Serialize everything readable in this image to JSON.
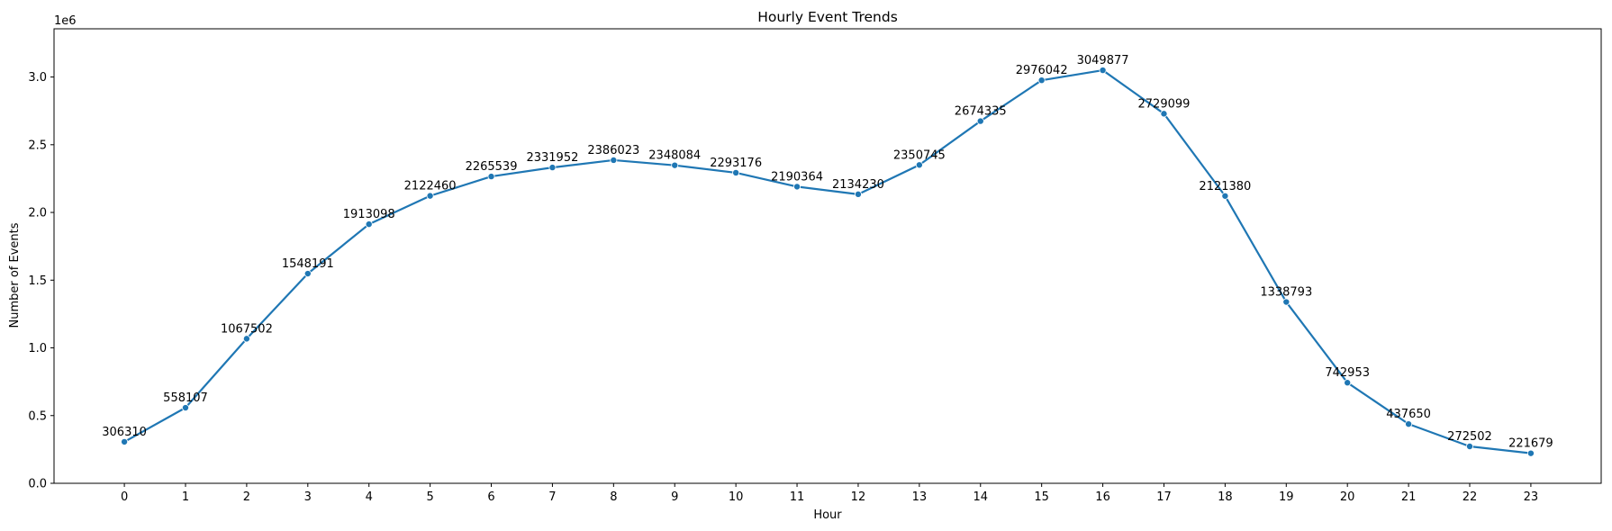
{
  "chart_data": {
    "type": "line",
    "title": "Hourly Event Trends",
    "xlabel": "Hour",
    "ylabel": "Number of Events",
    "y_offset_label": "1e6",
    "y_scale": 1000000,
    "x": [
      0,
      1,
      2,
      3,
      4,
      5,
      6,
      7,
      8,
      9,
      10,
      11,
      12,
      13,
      14,
      15,
      16,
      17,
      18,
      19,
      20,
      21,
      22,
      23
    ],
    "x_ticks": [
      "0",
      "1",
      "2",
      "3",
      "4",
      "5",
      "6",
      "7",
      "8",
      "9",
      "10",
      "11",
      "12",
      "13",
      "14",
      "15",
      "16",
      "17",
      "18",
      "19",
      "20",
      "21",
      "22",
      "23"
    ],
    "xlim": [
      -1.15,
      24.15
    ],
    "ylim": [
      0,
      3356000
    ],
    "y_ticks": [
      0,
      500000,
      1000000,
      1500000,
      2000000,
      2500000,
      3000000
    ],
    "y_tick_labels": [
      "0.0",
      "0.5",
      "1.0",
      "1.5",
      "2.0",
      "2.5",
      "3.0"
    ],
    "grid": false,
    "legend": "none",
    "series": [
      {
        "values": [
          306310,
          558107,
          1067502,
          1548191,
          1913098,
          2122460,
          2265539,
          2331952,
          2386023,
          2348084,
          2293176,
          2190364,
          2134230,
          2350745,
          2674335,
          2976042,
          3049877,
          2729099,
          2121380,
          1338793,
          742953,
          437650,
          272502,
          221679
        ],
        "color": "#1f77b4",
        "marker": "circle",
        "data_labels": [
          "306310",
          "558107",
          "1067502",
          "1548191",
          "1913098",
          "2122460",
          "2265539",
          "2331952",
          "2386023",
          "2348084",
          "2293176",
          "2190364",
          "2134230",
          "2350745",
          "2674335",
          "2976042",
          "3049877",
          "2729099",
          "2121380",
          "1338793",
          "742953",
          "437650",
          "272502",
          "221679"
        ]
      }
    ]
  }
}
